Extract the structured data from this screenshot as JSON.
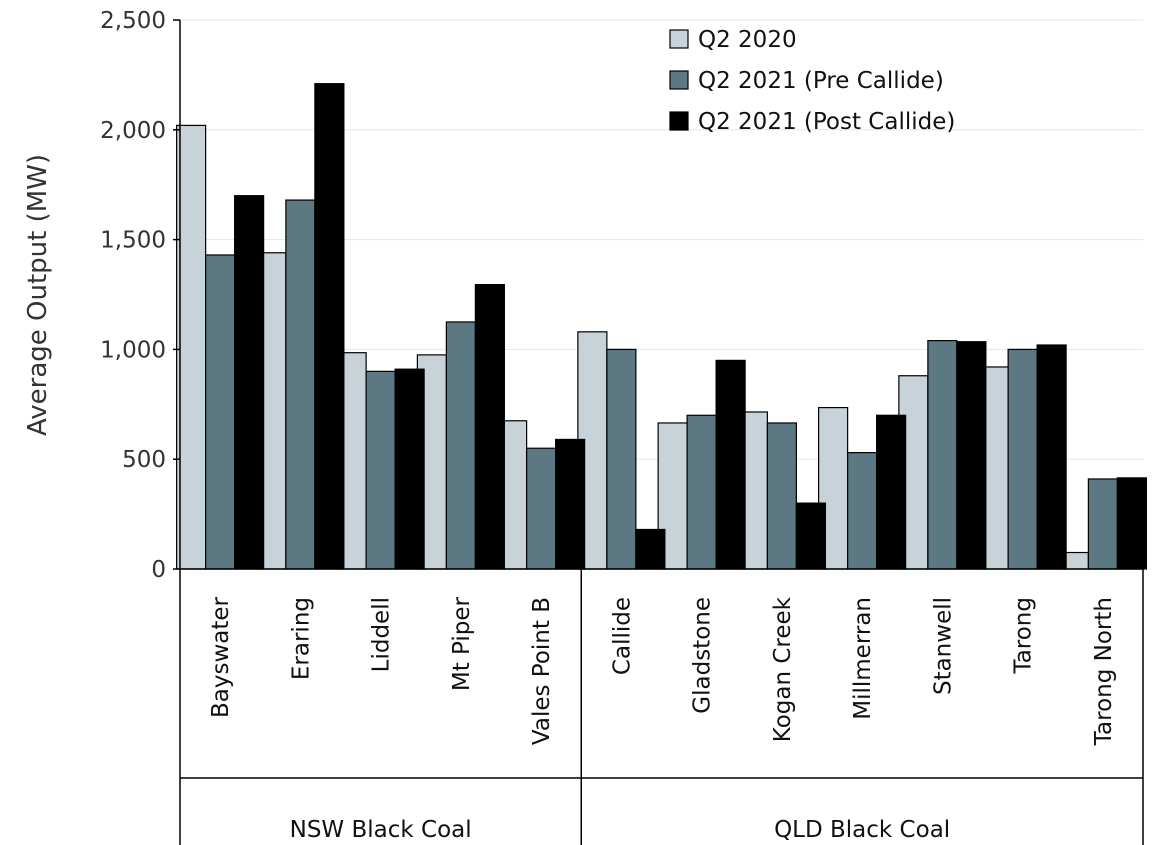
{
  "chart_data": {
    "type": "bar",
    "title": "",
    "ylabel": "Average Output (MW)",
    "xlabel": "",
    "ylim": [
      0,
      2500
    ],
    "yticks": [
      0,
      500,
      1000,
      1500,
      2000,
      2500
    ],
    "ytick_labels": [
      "0",
      "500",
      "1,000",
      "1,500",
      "2,000",
      "2,500"
    ],
    "grid": true,
    "legend_position": "top-right",
    "categories": [
      "Bayswater",
      "Eraring",
      "Liddell",
      "Mt Piper",
      "Vales Point B",
      "Callide",
      "Gladstone",
      "Kogan Creek",
      "Millmerran",
      "Stanwell",
      "Tarong",
      "Tarong North"
    ],
    "groups": [
      {
        "name": "NSW Black Coal",
        "categories": [
          "Bayswater",
          "Eraring",
          "Liddell",
          "Mt Piper",
          "Vales Point B"
        ]
      },
      {
        "name": "QLD Black Coal",
        "categories": [
          "Callide",
          "Gladstone",
          "Kogan Creek",
          "Millmerran",
          "Stanwell",
          "Tarong",
          "Tarong North"
        ]
      }
    ],
    "series": [
      {
        "name": "Q2 2020",
        "color": "#c8d3d9",
        "values": [
          2020,
          1440,
          985,
          975,
          675,
          1080,
          665,
          715,
          735,
          880,
          920,
          75
        ]
      },
      {
        "name": "Q2 2021 (Pre Callide)",
        "color": "#5b7883",
        "values": [
          1430,
          1680,
          900,
          1125,
          550,
          1000,
          700,
          665,
          530,
          1040,
          1000,
          410
        ]
      },
      {
        "name": "Q2 2021 (Post Callide)",
        "color": "#000000",
        "values": [
          1700,
          2210,
          910,
          1295,
          590,
          180,
          950,
          300,
          700,
          1035,
          1020,
          415
        ]
      }
    ]
  }
}
